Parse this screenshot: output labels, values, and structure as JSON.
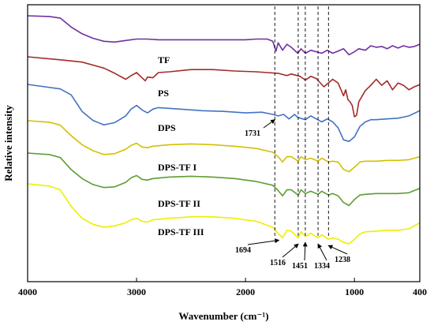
{
  "chart_data": {
    "type": "line",
    "xlabel": "Wavenumber (cm⁻¹)",
    "ylabel": "Relative intensity",
    "xlim": [
      4000,
      400
    ],
    "x_reversed": true,
    "x_ticks": [
      4000,
      3000,
      2000,
      1000,
      400
    ],
    "y_ticks_shown": false,
    "grid": false,
    "legend": "none",
    "series": [
      {
        "name": "TF",
        "color": "#7030A0",
        "points": [
          [
            4000,
            0
          ],
          [
            3800,
            1
          ],
          [
            3700,
            3
          ],
          [
            3600,
            15
          ],
          [
            3500,
            24
          ],
          [
            3400,
            30
          ],
          [
            3300,
            34
          ],
          [
            3200,
            35
          ],
          [
            3100,
            33
          ],
          [
            3000,
            31
          ],
          [
            2900,
            31
          ],
          [
            2800,
            32
          ],
          [
            2600,
            32
          ],
          [
            2400,
            32
          ],
          [
            2200,
            32
          ],
          [
            2000,
            32
          ],
          [
            1900,
            31
          ],
          [
            1800,
            31
          ],
          [
            1750,
            34
          ],
          [
            1720,
            47
          ],
          [
            1700,
            36
          ],
          [
            1660,
            46
          ],
          [
            1620,
            38
          ],
          [
            1580,
            42
          ],
          [
            1520,
            50
          ],
          [
            1490,
            44
          ],
          [
            1450,
            50
          ],
          [
            1400,
            46
          ],
          [
            1350,
            48
          ],
          [
            1300,
            50
          ],
          [
            1250,
            46
          ],
          [
            1200,
            50
          ],
          [
            1150,
            47
          ],
          [
            1100,
            44
          ],
          [
            1050,
            52
          ],
          [
            1000,
            48
          ],
          [
            960,
            44
          ],
          [
            900,
            46
          ],
          [
            850,
            40
          ],
          [
            800,
            42
          ],
          [
            750,
            41
          ],
          [
            700,
            44
          ],
          [
            650,
            40
          ],
          [
            600,
            43
          ],
          [
            550,
            40
          ],
          [
            500,
            42
          ],
          [
            450,
            41
          ],
          [
            400,
            38
          ]
        ]
      },
      {
        "name": "PS",
        "color": "#A52A2A",
        "points": [
          [
            4000,
            0
          ],
          [
            3700,
            4
          ],
          [
            3500,
            7
          ],
          [
            3300,
            15
          ],
          [
            3200,
            22
          ],
          [
            3100,
            30
          ],
          [
            3050,
            25
          ],
          [
            3000,
            21
          ],
          [
            2950,
            28
          ],
          [
            2920,
            32
          ],
          [
            2900,
            27
          ],
          [
            2850,
            28
          ],
          [
            2800,
            21
          ],
          [
            2700,
            20
          ],
          [
            2500,
            17
          ],
          [
            2300,
            17
          ],
          [
            2100,
            19
          ],
          [
            1900,
            20
          ],
          [
            1800,
            21
          ],
          [
            1700,
            22
          ],
          [
            1620,
            25
          ],
          [
            1580,
            23
          ],
          [
            1500,
            26
          ],
          [
            1450,
            31
          ],
          [
            1400,
            26
          ],
          [
            1350,
            29
          ],
          [
            1280,
            40
          ],
          [
            1200,
            30
          ],
          [
            1150,
            35
          ],
          [
            1100,
            52
          ],
          [
            1080,
            44
          ],
          [
            1060,
            57
          ],
          [
            1040,
            60
          ],
          [
            1020,
            65
          ],
          [
            1000,
            80
          ],
          [
            980,
            78
          ],
          [
            960,
            60
          ],
          [
            900,
            45
          ],
          [
            850,
            38
          ],
          [
            800,
            30
          ],
          [
            750,
            38
          ],
          [
            700,
            32
          ],
          [
            650,
            44
          ],
          [
            600,
            35
          ],
          [
            550,
            38
          ],
          [
            500,
            44
          ],
          [
            450,
            40
          ],
          [
            400,
            37
          ]
        ]
      },
      {
        "name": "DPS",
        "color": "#4472C4",
        "points": [
          [
            4000,
            0
          ],
          [
            3700,
            6
          ],
          [
            3600,
            14
          ],
          [
            3500,
            36
          ],
          [
            3400,
            48
          ],
          [
            3300,
            54
          ],
          [
            3200,
            51
          ],
          [
            3100,
            42
          ],
          [
            3050,
            33
          ],
          [
            3000,
            28
          ],
          [
            2950,
            34
          ],
          [
            2900,
            38
          ],
          [
            2850,
            33
          ],
          [
            2800,
            31
          ],
          [
            2600,
            33
          ],
          [
            2400,
            35
          ],
          [
            2200,
            36
          ],
          [
            2000,
            38
          ],
          [
            1850,
            37
          ],
          [
            1750,
            40
          ],
          [
            1700,
            42
          ],
          [
            1650,
            40
          ],
          [
            1600,
            46
          ],
          [
            1550,
            40
          ],
          [
            1520,
            44
          ],
          [
            1450,
            47
          ],
          [
            1400,
            42
          ],
          [
            1350,
            46
          ],
          [
            1300,
            50
          ],
          [
            1250,
            46
          ],
          [
            1200,
            50
          ],
          [
            1150,
            58
          ],
          [
            1100,
            74
          ],
          [
            1050,
            76
          ],
          [
            1000,
            70
          ],
          [
            950,
            56
          ],
          [
            900,
            50
          ],
          [
            850,
            47
          ],
          [
            800,
            47
          ],
          [
            700,
            46
          ],
          [
            600,
            45
          ],
          [
            500,
            42
          ],
          [
            400,
            35
          ]
        ]
      },
      {
        "name": "DPS-TF I",
        "color": "#D4C000",
        "points": [
          [
            4000,
            0
          ],
          [
            3800,
            2
          ],
          [
            3700,
            6
          ],
          [
            3600,
            20
          ],
          [
            3500,
            32
          ],
          [
            3400,
            40
          ],
          [
            3300,
            45
          ],
          [
            3200,
            44
          ],
          [
            3100,
            38
          ],
          [
            3050,
            33
          ],
          [
            3000,
            30
          ],
          [
            2950,
            35
          ],
          [
            2900,
            36
          ],
          [
            2850,
            34
          ],
          [
            2700,
            32
          ],
          [
            2500,
            31
          ],
          [
            2300,
            32
          ],
          [
            2100,
            34
          ],
          [
            1900,
            37
          ],
          [
            1750,
            42
          ],
          [
            1700,
            48
          ],
          [
            1660,
            55
          ],
          [
            1620,
            48
          ],
          [
            1580,
            48
          ],
          [
            1516,
            54
          ],
          [
            1490,
            48
          ],
          [
            1450,
            52
          ],
          [
            1400,
            50
          ],
          [
            1334,
            54
          ],
          [
            1300,
            50
          ],
          [
            1238,
            55
          ],
          [
            1200,
            54
          ],
          [
            1150,
            55
          ],
          [
            1100,
            65
          ],
          [
            1050,
            68
          ],
          [
            1000,
            62
          ],
          [
            950,
            55
          ],
          [
            900,
            54
          ],
          [
            800,
            54
          ],
          [
            700,
            53
          ],
          [
            600,
            53
          ],
          [
            500,
            52
          ],
          [
            400,
            48
          ]
        ]
      },
      {
        "name": "DPS-TF II",
        "color": "#5B9E32",
        "points": [
          [
            4000,
            0
          ],
          [
            3800,
            2
          ],
          [
            3700,
            6
          ],
          [
            3600,
            22
          ],
          [
            3500,
            34
          ],
          [
            3400,
            42
          ],
          [
            3300,
            46
          ],
          [
            3200,
            45
          ],
          [
            3100,
            39
          ],
          [
            3050,
            33
          ],
          [
            3000,
            30
          ],
          [
            2950,
            35
          ],
          [
            2900,
            36
          ],
          [
            2850,
            34
          ],
          [
            2700,
            32
          ],
          [
            2500,
            31
          ],
          [
            2300,
            32
          ],
          [
            2100,
            34
          ],
          [
            1900,
            38
          ],
          [
            1750,
            43
          ],
          [
            1700,
            50
          ],
          [
            1660,
            57
          ],
          [
            1620,
            49
          ],
          [
            1580,
            49
          ],
          [
            1516,
            56
          ],
          [
            1490,
            49
          ],
          [
            1450,
            54
          ],
          [
            1400,
            51
          ],
          [
            1334,
            55
          ],
          [
            1300,
            51
          ],
          [
            1238,
            56
          ],
          [
            1200,
            54
          ],
          [
            1150,
            57
          ],
          [
            1100,
            66
          ],
          [
            1050,
            70
          ],
          [
            1000,
            62
          ],
          [
            950,
            56
          ],
          [
            900,
            55
          ],
          [
            800,
            54
          ],
          [
            700,
            54
          ],
          [
            600,
            54
          ],
          [
            500,
            53
          ],
          [
            400,
            47
          ]
        ]
      },
      {
        "name": "DPS-TF III",
        "color": "#EEEE00",
        "points": [
          [
            4000,
            0
          ],
          [
            3800,
            3
          ],
          [
            3700,
            8
          ],
          [
            3600,
            30
          ],
          [
            3500,
            46
          ],
          [
            3400,
            54
          ],
          [
            3300,
            58
          ],
          [
            3200,
            56
          ],
          [
            3100,
            52
          ],
          [
            3050,
            48
          ],
          [
            3000,
            46
          ],
          [
            2950,
            50
          ],
          [
            2900,
            51
          ],
          [
            2850,
            48
          ],
          [
            2700,
            46
          ],
          [
            2500,
            44
          ],
          [
            2300,
            44
          ],
          [
            2100,
            46
          ],
          [
            1900,
            50
          ],
          [
            1750,
            58
          ],
          [
            1700,
            66
          ],
          [
            1660,
            72
          ],
          [
            1620,
            62
          ],
          [
            1580,
            63
          ],
          [
            1516,
            72
          ],
          [
            1490,
            64
          ],
          [
            1450,
            70
          ],
          [
            1400,
            66
          ],
          [
            1334,
            72
          ],
          [
            1300,
            68
          ],
          [
            1238,
            74
          ],
          [
            1200,
            72
          ],
          [
            1150,
            74
          ],
          [
            1100,
            78
          ],
          [
            1050,
            80
          ],
          [
            1000,
            74
          ],
          [
            950,
            67
          ],
          [
            900,
            64
          ],
          [
            800,
            63
          ],
          [
            700,
            62
          ],
          [
            600,
            62
          ],
          [
            500,
            60
          ],
          [
            400,
            52
          ]
        ]
      }
    ],
    "series_labels": [
      "TF",
      "PS",
      "DPS",
      "DPS-TF I",
      "DPS-TF II",
      "DPS-TF III"
    ],
    "reference_lines_wavenumber": [
      1694,
      1516,
      1451,
      1334,
      1238
    ],
    "annotations": [
      {
        "text": "1731",
        "x": 1731,
        "series": "DPS"
      },
      {
        "text": "1694",
        "x": 1694,
        "series": "DPS-TF III"
      },
      {
        "text": "1516",
        "x": 1516,
        "series": "DPS-TF III"
      },
      {
        "text": "1451",
        "x": 1451,
        "series": "DPS-TF III"
      },
      {
        "text": "1334",
        "x": 1334,
        "series": "DPS-TF III"
      },
      {
        "text": "1238",
        "x": 1238,
        "series": "DPS-TF III"
      }
    ]
  }
}
